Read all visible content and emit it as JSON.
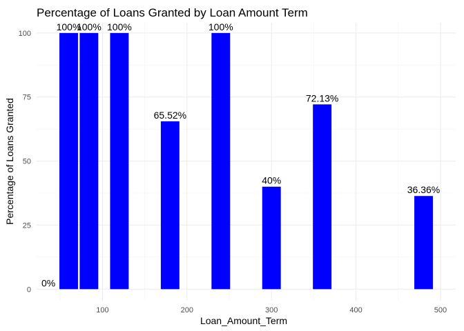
{
  "chart_data": {
    "type": "bar",
    "title": "Percentage of Loans Granted by Loan Amount Term",
    "xlabel": "Loan_Amount_Term",
    "ylabel": "Percentage of Loans Granted",
    "xlim": [
      22,
      518
    ],
    "ylim": [
      -4.5,
      104
    ],
    "xticks": [
      100,
      200,
      300,
      400,
      500
    ],
    "yticks": [
      0,
      25,
      50,
      75,
      100
    ],
    "grid": true,
    "legend": "none",
    "bar_color": "#0000ff",
    "bar_width": 22,
    "x": [
      36,
      60,
      84,
      120,
      180,
      240,
      300,
      360,
      480
    ],
    "values": [
      0,
      100,
      100,
      100,
      65.52,
      100,
      40,
      72.13,
      36.36
    ],
    "labels": [
      "0%",
      "100%",
      "100%",
      "100%",
      "65.52%",
      "100%",
      "40%",
      "72.13%",
      "36.36%"
    ]
  }
}
